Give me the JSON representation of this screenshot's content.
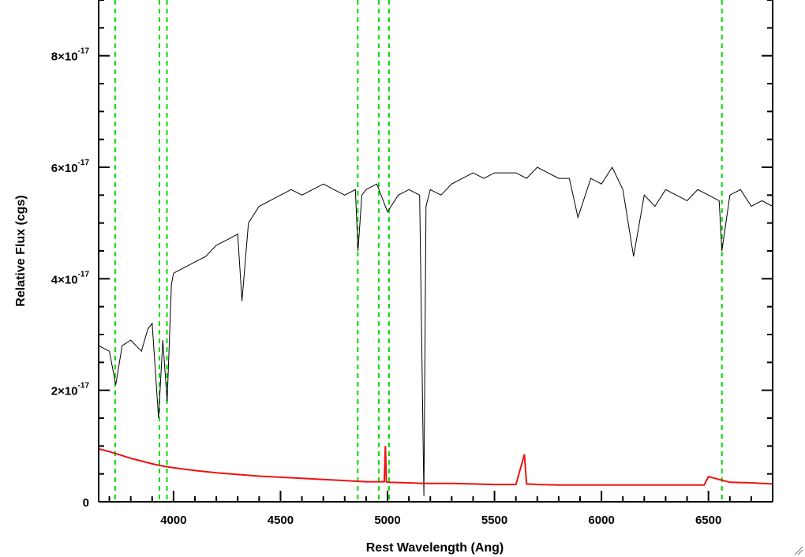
{
  "chart_data": {
    "type": "line",
    "title": "",
    "xlabel": "Rest Wavelength (Ang)",
    "ylabel": "Relative Flux (cgs)",
    "xlim": [
      3650,
      6800
    ],
    "ylim": [
      0,
      9e-17
    ],
    "x_ticks": [
      4000,
      4500,
      5000,
      5500,
      6000,
      6500
    ],
    "x_tick_labels": [
      "4000",
      "4500",
      "5000",
      "5500",
      "6000",
      "6500"
    ],
    "y_ticks": [
      0,
      2e-17,
      4e-17,
      6e-17,
      8e-17
    ],
    "y_tick_labels": [
      {
        "mantissa": "0",
        "exponent": ""
      },
      {
        "mantissa": "2×10",
        "exponent": "-17"
      },
      {
        "mantissa": "4×10",
        "exponent": "-17"
      },
      {
        "mantissa": "6×10",
        "exponent": "-17"
      },
      {
        "mantissa": "8×10",
        "exponent": "-17"
      }
    ],
    "grid": false,
    "colors": {
      "spectrum": "#000000",
      "error": "#ee1111",
      "lines": "#00dd00"
    },
    "reference_lines": [
      3727,
      3934,
      3969,
      4861,
      4959,
      5007,
      6563
    ],
    "series": [
      {
        "role": "spectrum",
        "x": [
          3650,
          3700,
          3730,
          3760,
          3800,
          3850,
          3880,
          3900,
          3930,
          3950,
          3970,
          3990,
          4000,
          4050,
          4100,
          4150,
          4200,
          4250,
          4300,
          4320,
          4350,
          4400,
          4450,
          4500,
          4550,
          4600,
          4650,
          4700,
          4750,
          4800,
          4850,
          4862,
          4880,
          4900,
          4950,
          5000,
          5050,
          5100,
          5150,
          5170,
          5180,
          5200,
          5250,
          5300,
          5350,
          5400,
          5450,
          5500,
          5550,
          5600,
          5650,
          5700,
          5750,
          5800,
          5850,
          5890,
          5950,
          6000,
          6050,
          6100,
          6150,
          6200,
          6250,
          6300,
          6350,
          6400,
          6450,
          6500,
          6550,
          6563,
          6600,
          6650,
          6700,
          6750,
          6800
        ],
        "y": [
          2.8e-17,
          2.7e-17,
          2.1e-17,
          2.8e-17,
          2.9e-17,
          2.7e-17,
          3.1e-17,
          3.2e-17,
          1.5e-17,
          2.9e-17,
          1.8e-17,
          3.9e-17,
          4.1e-17,
          4.2e-17,
          4.3e-17,
          4.4e-17,
          4.6e-17,
          4.7e-17,
          4.8e-17,
          3.6e-17,
          5e-17,
          5.3e-17,
          5.4e-17,
          5.5e-17,
          5.6e-17,
          5.5e-17,
          5.6e-17,
          5.7e-17,
          5.6e-17,
          5.5e-17,
          5.6e-17,
          4.5e-17,
          5.5e-17,
          5.6e-17,
          5.7e-17,
          5.2e-17,
          5.5e-17,
          5.6e-17,
          5.5e-17,
          1e-18,
          5.3e-17,
          5.6e-17,
          5.5e-17,
          5.7e-17,
          5.8e-17,
          5.9e-17,
          5.8e-17,
          5.9e-17,
          5.9e-17,
          5.9e-17,
          5.8e-17,
          6e-17,
          5.9e-17,
          5.8e-17,
          5.8e-17,
          5.1e-17,
          5.8e-17,
          5.7e-17,
          6e-17,
          5.6e-17,
          4.4e-17,
          5.5e-17,
          5.3e-17,
          5.6e-17,
          5.5e-17,
          5.4e-17,
          5.6e-17,
          5.5e-17,
          5.4e-17,
          4.5e-17,
          5.5e-17,
          5.6e-17,
          5.3e-17,
          5.4e-17,
          5.3e-17
        ]
      },
      {
        "role": "error",
        "x": [
          3650,
          3700,
          3750,
          3800,
          3850,
          3900,
          3950,
          4000,
          4100,
          4200,
          4300,
          4400,
          4500,
          4600,
          4700,
          4800,
          4900,
          4985,
          4990,
          4995,
          5000,
          5100,
          5170,
          5200,
          5300,
          5400,
          5500,
          5600,
          5640,
          5650,
          5700,
          5800,
          5900,
          6000,
          6100,
          6200,
          6300,
          6400,
          6480,
          6500,
          6550,
          6600,
          6700,
          6800
        ],
        "y": [
          9.5e-18,
          9e-18,
          8.4e-18,
          7.8e-18,
          7.3e-18,
          6.8e-18,
          6.4e-18,
          6.1e-18,
          5.6e-18,
          5.2e-18,
          4.9e-18,
          4.6e-18,
          4.4e-18,
          4.2e-18,
          4e-18,
          3.8e-18,
          3.6e-18,
          3.6e-18,
          1e-17,
          3.6e-18,
          3.5e-18,
          3.4e-18,
          3.3e-18,
          3.3e-18,
          3.3e-18,
          3.2e-18,
          3.1e-18,
          3.1e-18,
          8.5e-18,
          3.2e-18,
          3.1e-18,
          3e-18,
          3e-18,
          3e-18,
          3e-18,
          3e-18,
          3e-18,
          3e-18,
          3e-18,
          4.5e-18,
          4e-18,
          3.5e-18,
          3.4e-18,
          3.2e-18
        ]
      }
    ]
  }
}
